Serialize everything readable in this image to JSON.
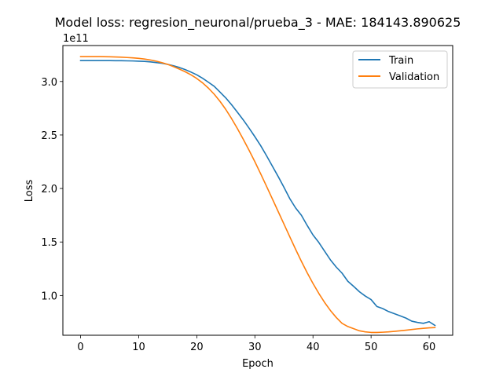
{
  "chart_data": {
    "type": "line",
    "title": "Model loss: regresion_neuronal/prueba_3 - MAE: 184143.890625",
    "xlabel": "Epoch",
    "ylabel": "Loss",
    "y_offset_label": "1e11",
    "y_scale": 100000000000.0,
    "xlim": [
      -3.05,
      64.05
    ],
    "ylim": [
      0.6285,
      3.336
    ],
    "x_ticks": [
      0,
      10,
      20,
      30,
      40,
      50,
      60
    ],
    "y_ticks": [
      1.0,
      1.5,
      2.0,
      2.5,
      3.0
    ],
    "y_tick_labels": [
      "1.0",
      "1.5",
      "2.0",
      "2.5",
      "3.0"
    ],
    "grid": false,
    "legend_position": "top-right",
    "series": [
      {
        "name": "Train",
        "color": "#1f77b4",
        "x": [
          0,
          1,
          2,
          3,
          4,
          5,
          6,
          7,
          8,
          9,
          10,
          11,
          12,
          13,
          14,
          15,
          16,
          17,
          18,
          19,
          20,
          21,
          22,
          23,
          24,
          25,
          26,
          27,
          28,
          29,
          30,
          31,
          32,
          33,
          34,
          35,
          36,
          37,
          38,
          39,
          40,
          41,
          42,
          43,
          44,
          45,
          46,
          47,
          48,
          49,
          50,
          51,
          52,
          53,
          54,
          55,
          56,
          57,
          58,
          59,
          60,
          61
        ],
        "values": [
          3.195,
          3.195,
          3.195,
          3.195,
          3.195,
          3.195,
          3.194,
          3.194,
          3.193,
          3.192,
          3.19,
          3.188,
          3.183,
          3.177,
          3.17,
          3.16,
          3.147,
          3.131,
          3.111,
          3.088,
          3.062,
          3.03,
          2.993,
          2.955,
          2.901,
          2.846,
          2.782,
          2.712,
          2.641,
          2.564,
          2.484,
          2.4,
          2.307,
          2.21,
          2.113,
          2.012,
          1.906,
          1.819,
          1.75,
          1.655,
          1.566,
          1.496,
          1.414,
          1.333,
          1.266,
          1.209,
          1.133,
          1.085,
          1.035,
          0.995,
          0.962,
          0.897,
          0.878,
          0.85,
          0.83,
          0.81,
          0.789,
          0.76,
          0.748,
          0.74,
          0.755,
          0.72
        ]
      },
      {
        "name": "Validation",
        "color": "#ff7f0e",
        "x": [
          0,
          1,
          2,
          3,
          4,
          5,
          6,
          7,
          8,
          9,
          10,
          11,
          12,
          13,
          14,
          15,
          16,
          17,
          18,
          19,
          20,
          21,
          22,
          23,
          24,
          25,
          26,
          27,
          28,
          29,
          30,
          31,
          32,
          33,
          34,
          35,
          36,
          37,
          38,
          39,
          40,
          41,
          42,
          43,
          44,
          45,
          46,
          47,
          48,
          49,
          50,
          51,
          52,
          53,
          54,
          55,
          56,
          57,
          58,
          59,
          60,
          61
        ],
        "values": [
          3.233,
          3.233,
          3.233,
          3.233,
          3.232,
          3.231,
          3.229,
          3.227,
          3.224,
          3.221,
          3.216,
          3.21,
          3.201,
          3.19,
          3.176,
          3.16,
          3.139,
          3.116,
          3.091,
          3.062,
          3.028,
          2.987,
          2.938,
          2.881,
          2.814,
          2.738,
          2.652,
          2.559,
          2.46,
          2.357,
          2.25,
          2.137,
          2.021,
          1.904,
          1.786,
          1.668,
          1.55,
          1.433,
          1.32,
          1.213,
          1.113,
          1.02,
          0.935,
          0.86,
          0.795,
          0.74,
          0.71,
          0.69,
          0.67,
          0.66,
          0.655,
          0.655,
          0.657,
          0.66,
          0.665,
          0.67,
          0.676,
          0.682,
          0.688,
          0.693,
          0.698,
          0.7
        ]
      }
    ]
  }
}
